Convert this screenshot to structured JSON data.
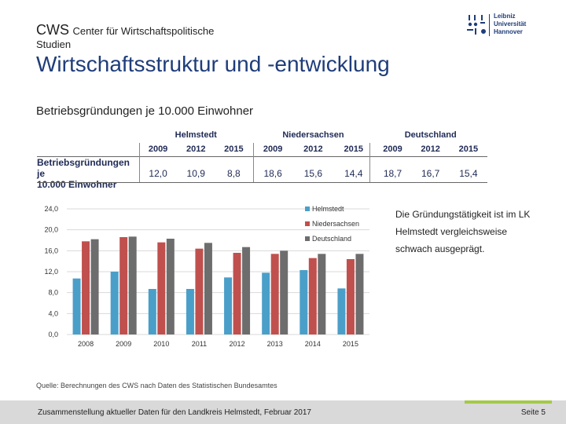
{
  "header": {
    "cws": "CWS",
    "center_name": "Center für Wirtschaftspolitische",
    "center_name_cont": "Studien",
    "logo_lines": [
      "Leibniz",
      "Universität",
      "Hannover"
    ]
  },
  "title": "Wirtschaftsstruktur und -entwicklung",
  "subtitle": "Betriebsgründungen je 10.000 Einwohner",
  "table": {
    "groups": [
      "Helmstedt",
      "Niedersachsen",
      "Deutschland"
    ],
    "years": [
      "2009",
      "2012",
      "2015",
      "2009",
      "2012",
      "2015",
      "2009",
      "2012",
      "2015"
    ],
    "row_label_1": "Betriebsgründungen je",
    "row_label_2": "10.000 Einwohner",
    "values": [
      "12,0",
      "10,9",
      "8,8",
      "18,6",
      "15,6",
      "14,4",
      "18,7",
      "16,7",
      "15,4"
    ]
  },
  "chart_data": {
    "type": "bar",
    "categories": [
      "2008",
      "2009",
      "2010",
      "2011",
      "2012",
      "2013",
      "2014",
      "2015"
    ],
    "series": [
      {
        "name": "Helmstedt",
        "color": "#4a9fc9",
        "values": [
          10.7,
          12.0,
          8.7,
          8.7,
          10.9,
          11.8,
          12.3,
          8.8
        ]
      },
      {
        "name": "Niedersachsen",
        "color": "#c0504d",
        "values": [
          17.8,
          18.6,
          17.6,
          16.4,
          15.6,
          15.4,
          14.6,
          14.4
        ]
      },
      {
        "name": "Deutschland",
        "color": "#6d6d6d",
        "values": [
          18.2,
          18.7,
          18.3,
          17.5,
          16.7,
          16.0,
          15.4,
          15.4
        ]
      }
    ],
    "yticks": [
      "0,0",
      "4,0",
      "8,0",
      "12,0",
      "16,0",
      "20,0",
      "24,0"
    ],
    "ylim": [
      0,
      24
    ],
    "legend_position": "top-right"
  },
  "note": "Die Gründungstätigkeit ist im LK Helmstedt vergleichsweise schwach ausgeprägt.",
  "source": "Quelle: Berechnungen des CWS nach Daten des Statistischen Bundesamtes",
  "footer": {
    "text": "Zusammenstellung aktueller Daten für den Landkreis Helmstedt, Februar 2017",
    "page": "Seite 5"
  }
}
